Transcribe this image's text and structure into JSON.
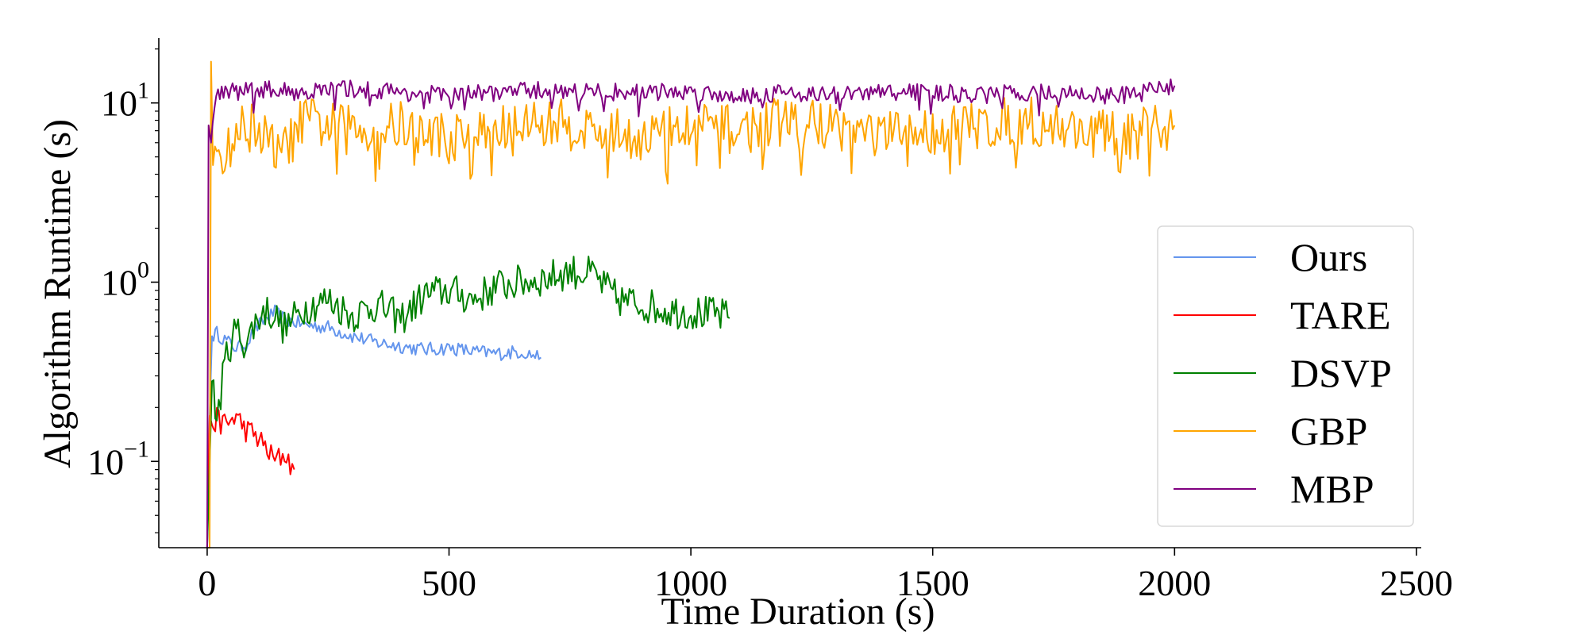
{
  "chart_data": {
    "type": "line",
    "title": "",
    "xlabel": "Time Duration (s)",
    "ylabel": "Algorithm Runtime (s)",
    "xlim": [
      -100,
      2510
    ],
    "ylim": [
      0.033,
      23
    ],
    "yscale": "log",
    "x_ticks": [
      0,
      500,
      1000,
      1500,
      2000,
      2500
    ],
    "x_tick_labels": [
      "0",
      "500",
      "1000",
      "1500",
      "2000",
      "2500"
    ],
    "y_ticks": [
      {
        "value": 0.1,
        "base": "10",
        "exp": "−1"
      },
      {
        "value": 1,
        "base": "10",
        "exp": "0"
      },
      {
        "value": 10,
        "base": "10",
        "exp": "1"
      }
    ],
    "legend_position": "center-right",
    "series": [
      {
        "name": "Ours",
        "color": "#6495ed",
        "x": [
          0,
          5,
          10,
          20,
          40,
          60,
          80,
          100,
          120,
          140,
          160,
          200,
          250,
          300,
          350,
          400,
          450,
          500,
          550,
          600,
          650,
          690
        ],
        "y": [
          0.033,
          0.18,
          0.5,
          0.52,
          0.47,
          0.43,
          0.45,
          0.55,
          0.62,
          0.68,
          0.62,
          0.58,
          0.56,
          0.5,
          0.46,
          0.44,
          0.42,
          0.43,
          0.41,
          0.4,
          0.41,
          0.38
        ]
      },
      {
        "name": "TARE",
        "color": "#ff0000",
        "x": [
          0,
          5,
          10,
          20,
          40,
          60,
          80,
          100,
          120,
          140,
          160,
          180
        ],
        "y": [
          0.033,
          0.18,
          0.16,
          0.17,
          0.16,
          0.18,
          0.15,
          0.14,
          0.12,
          0.1,
          0.11,
          0.09
        ]
      },
      {
        "name": "DSVP",
        "color": "#008000",
        "x": [
          0,
          10,
          20,
          40,
          60,
          80,
          100,
          120,
          140,
          160,
          200,
          250,
          300,
          350,
          400,
          450,
          500,
          550,
          600,
          650,
          700,
          750,
          800,
          820,
          850,
          900,
          950,
          1000,
          1050,
          1080
        ],
        "y": [
          0.033,
          0.28,
          0.17,
          0.4,
          0.55,
          0.45,
          0.6,
          0.7,
          0.65,
          0.55,
          0.72,
          0.8,
          0.65,
          0.75,
          0.62,
          0.85,
          0.9,
          0.8,
          0.95,
          1.0,
          1.05,
          1.15,
          1.1,
          0.95,
          0.8,
          0.75,
          0.7,
          0.68,
          0.66,
          0.63
        ]
      },
      {
        "name": "GBP",
        "color": "#ffa500",
        "x": [
          0,
          5,
          8,
          12,
          20,
          40,
          60,
          100,
          150,
          200,
          300,
          400,
          500,
          600,
          700,
          800,
          900,
          1000,
          1100,
          1200,
          1300,
          1400,
          1500,
          1600,
          1700,
          1800,
          1900,
          2000
        ],
        "y": [
          0.033,
          0.033,
          17,
          4.5,
          6,
          5,
          7,
          7.5,
          5,
          8,
          7,
          7.5,
          6.5,
          7,
          8,
          7,
          6.5,
          7.5,
          7,
          8,
          7.5,
          6.5,
          7,
          7.5,
          8,
          7,
          6.5,
          7.5
        ]
      },
      {
        "name": "MBP",
        "color": "#800080",
        "x": [
          0,
          3,
          8,
          15,
          30,
          60,
          100,
          200,
          300,
          400,
          500,
          600,
          700,
          800,
          900,
          1000,
          1100,
          1200,
          1300,
          1400,
          1500,
          1600,
          1700,
          1800,
          1900,
          2000
        ],
        "y": [
          0.033,
          7.5,
          6,
          10,
          12,
          11.5,
          12,
          11.5,
          12,
          11.5,
          11,
          11.5,
          11.8,
          11.5,
          11.5,
          11.5,
          11,
          11.5,
          11,
          11.5,
          11.5,
          11,
          11.5,
          11.2,
          11,
          12.5
        ]
      }
    ]
  }
}
